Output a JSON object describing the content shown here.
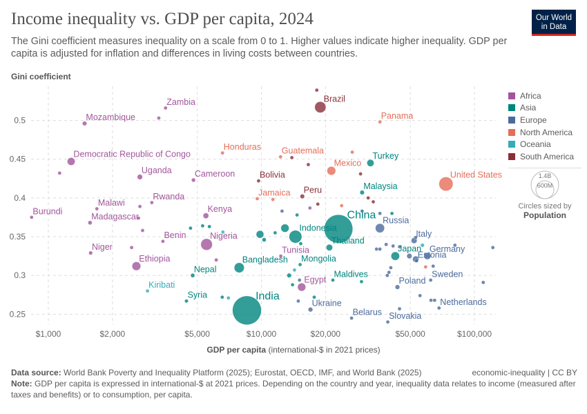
{
  "header": {
    "title": "Income inequality vs. GDP per capita, 2024",
    "subtitle": "The Gini coefficient measures inequality on a scale from 0 to 1. Higher values indicate higher inequality. GDP per capita is adjusted for inflation and differences in living costs between countries.",
    "logo_line1": "Our World",
    "logo_line2": "in Data"
  },
  "footer": {
    "source_label": "Data source:",
    "source": "World Bank Poverty and Inequality Platform (2025); Eurostat, OECD, IMF, and World Bank (2025)",
    "license": "economic-inequality | CC BY",
    "note_label": "Note:",
    "note": "GDP per capita is expressed in international-$ at 2021 prices. Depending on the country and year, inequality data relates to income (measured after taxes and benefits) or to consumption, per capita."
  },
  "size_legend": {
    "big": "1.4B",
    "small": "600M",
    "caption": "Circles sized by",
    "variable": "Population"
  },
  "chart_data": {
    "type": "scatter",
    "title": "Income inequality vs. GDP per capita, 2024",
    "xlabel_bold": "GDP per capita",
    "xlabel_rest": "(international-$ in 2021 prices)",
    "ylabel": "Gini coefficient",
    "xscale": "log",
    "xlim": [
      830,
      126000
    ],
    "ylim": [
      0.237,
      0.544
    ],
    "grid": true,
    "legend_position": "right",
    "xticks": [
      {
        "v": 1000,
        "label": "$1,000"
      },
      {
        "v": 2000,
        "label": "$2,000"
      },
      {
        "v": 5000,
        "label": "$5,000"
      },
      {
        "v": 10000,
        "label": "$10,000"
      },
      {
        "v": 20000,
        "label": "$20,000"
      },
      {
        "v": 50000,
        "label": "$50,000"
      },
      {
        "v": 100000,
        "label": "$100,000"
      }
    ],
    "yticks": [
      {
        "v": 0.25,
        "label": "0.25"
      },
      {
        "v": 0.3,
        "label": "0.3"
      },
      {
        "v": 0.35,
        "label": "0.35"
      },
      {
        "v": 0.4,
        "label": "0.4"
      },
      {
        "v": 0.45,
        "label": "0.45"
      },
      {
        "v": 0.5,
        "label": "0.5"
      }
    ],
    "regions": [
      {
        "name": "Africa",
        "color": "#a2559c"
      },
      {
        "name": "Asia",
        "color": "#00847e"
      },
      {
        "name": "Europe",
        "color": "#4c6a9c"
      },
      {
        "name": "North America",
        "color": "#e56e5a"
      },
      {
        "name": "Oceania",
        "color": "#38aaba"
      },
      {
        "name": "South America",
        "color": "#883039"
      }
    ],
    "points": [
      {
        "label": "Zambia",
        "region": "Africa",
        "x": 3550,
        "y": 0.516,
        "pop": 20
      },
      {
        "label": "",
        "region": "Africa",
        "x": 3300,
        "y": 0.503,
        "pop": 3
      },
      {
        "label": "Mozambique",
        "region": "Africa",
        "x": 1480,
        "y": 0.496,
        "pop": 34
      },
      {
        "label": "Democratic Republic of Congo",
        "region": "Africa",
        "x": 1280,
        "y": 0.447,
        "pop": 105
      },
      {
        "label": "",
        "region": "Africa",
        "x": 1130,
        "y": 0.432,
        "pop": 5
      },
      {
        "label": "Uganda",
        "region": "Africa",
        "x": 2690,
        "y": 0.427,
        "pop": 48
      },
      {
        "label": "Cameroon",
        "region": "Africa",
        "x": 4800,
        "y": 0.423,
        "pop": 28
      },
      {
        "label": "Rwanda",
        "region": "Africa",
        "x": 3060,
        "y": 0.394,
        "pop": 14
      },
      {
        "label": "",
        "region": "Africa",
        "x": 2690,
        "y": 0.389,
        "pop": 8
      },
      {
        "label": "Malawi",
        "region": "Africa",
        "x": 1690,
        "y": 0.386,
        "pop": 21
      },
      {
        "label": "Burundi",
        "region": "Africa",
        "x": 835,
        "y": 0.375,
        "pop": 13
      },
      {
        "label": "Madagascar",
        "region": "Africa",
        "x": 1570,
        "y": 0.368,
        "pop": 30
      },
      {
        "label": "",
        "region": "Africa",
        "x": 2650,
        "y": 0.374,
        "pop": 6
      },
      {
        "label": "Kenya",
        "region": "Africa",
        "x": 5490,
        "y": 0.377,
        "pop": 55
      },
      {
        "label": "",
        "region": "Africa",
        "x": 2770,
        "y": 0.358,
        "pop": 9
      },
      {
        "label": "Benin",
        "region": "Africa",
        "x": 3450,
        "y": 0.344,
        "pop": 14
      },
      {
        "label": "Nigeria",
        "region": "Africa",
        "x": 5530,
        "y": 0.34,
        "pop": 230
      },
      {
        "label": "Niger",
        "region": "Africa",
        "x": 1580,
        "y": 0.329,
        "pop": 26
      },
      {
        "label": "",
        "region": "Africa",
        "x": 2460,
        "y": 0.336,
        "pop": 6
      },
      {
        "label": "Ethiopia",
        "region": "Africa",
        "x": 2590,
        "y": 0.312,
        "pop": 130
      },
      {
        "label": "",
        "region": "Africa",
        "x": 6140,
        "y": 0.32,
        "pop": 7
      },
      {
        "label": "Tunisia",
        "region": "Africa",
        "x": 12330,
        "y": 0.325,
        "pop": 12
      },
      {
        "label": "",
        "region": "Africa",
        "x": 16900,
        "y": 0.387,
        "pop": 5
      },
      {
        "label": "Egypt",
        "region": "Africa",
        "x": 15450,
        "y": 0.285,
        "pop": 115
      },
      {
        "label": "Turkey",
        "region": "Asia",
        "x": 32500,
        "y": 0.445,
        "pop": 86
      },
      {
        "label": "Malaysia",
        "region": "Asia",
        "x": 29700,
        "y": 0.407,
        "pop": 35
      },
      {
        "label": "China",
        "region": "Asia",
        "x": 23000,
        "y": 0.36,
        "pop": 1410
      },
      {
        "label": "Indonesia",
        "region": "Asia",
        "x": 14450,
        "y": 0.35,
        "pop": 280
      },
      {
        "label": "",
        "region": "Asia",
        "x": 12900,
        "y": 0.361,
        "pop": 115
      },
      {
        "label": "",
        "region": "Asia",
        "x": 9850,
        "y": 0.353,
        "pop": 100
      },
      {
        "label": "",
        "region": "Asia",
        "x": 10300,
        "y": 0.346,
        "pop": 30
      },
      {
        "label": "",
        "region": "Asia",
        "x": 11600,
        "y": 0.355,
        "pop": 5
      },
      {
        "label": "Thailand",
        "region": "Asia",
        "x": 20850,
        "y": 0.336,
        "pop": 72
      },
      {
        "label": "Bangladesh",
        "region": "Asia",
        "x": 7870,
        "y": 0.31,
        "pop": 173
      },
      {
        "label": "Mongolia",
        "region": "Asia",
        "x": 15200,
        "y": 0.314,
        "pop": 4
      },
      {
        "label": "Nepal",
        "region": "Asia",
        "x": 4760,
        "y": 0.3,
        "pop": 30
      },
      {
        "label": "Maldives",
        "region": "Asia",
        "x": 21650,
        "y": 0.294,
        "pop": 1
      },
      {
        "label": "",
        "region": "Asia",
        "x": 29500,
        "y": 0.292,
        "pop": 5
      },
      {
        "label": "",
        "region": "Asia",
        "x": 13500,
        "y": 0.3,
        "pop": 35
      },
      {
        "label": "",
        "region": "Asia",
        "x": 14000,
        "y": 0.288,
        "pop": 5
      },
      {
        "label": "",
        "region": "Asia",
        "x": 15300,
        "y": 0.341,
        "pop": 5
      },
      {
        "label": "",
        "region": "Asia",
        "x": 5700,
        "y": 0.363,
        "pop": 5
      },
      {
        "label": "",
        "region": "Asia",
        "x": 4650,
        "y": 0.361,
        "pop": 5
      },
      {
        "label": "",
        "region": "Asia",
        "x": 5300,
        "y": 0.364,
        "pop": 5
      },
      {
        "label": "",
        "region": "Asia",
        "x": 14700,
        "y": 0.378,
        "pop": 5
      },
      {
        "label": "",
        "region": "Asia",
        "x": 41000,
        "y": 0.38,
        "pop": 5
      },
      {
        "label": "",
        "region": "Asia",
        "x": 6550,
        "y": 0.272,
        "pop": 5
      },
      {
        "label": "",
        "region": "Asia",
        "x": 17700,
        "y": 0.272,
        "pop": 5
      },
      {
        "label": "Japan",
        "region": "Asia",
        "x": 42500,
        "y": 0.325,
        "pop": 124
      },
      {
        "label": "India",
        "region": "Asia",
        "x": 8550,
        "y": 0.255,
        "pop": 1440
      },
      {
        "label": "Syria",
        "region": "Asia",
        "x": 4450,
        "y": 0.267,
        "pop": 23
      },
      {
        "label": "Kiribati",
        "region": "Oceania",
        "x": 2920,
        "y": 0.28,
        "pop": 1
      },
      {
        "label": "",
        "region": "Oceania",
        "x": 7000,
        "y": 0.271,
        "pop": 5
      },
      {
        "label": "",
        "region": "Oceania",
        "x": 6600,
        "y": 0.356,
        "pop": 5
      },
      {
        "label": "",
        "region": "Oceania",
        "x": 14300,
        "y": 0.307,
        "pop": 5
      },
      {
        "label": "",
        "region": "Oceania",
        "x": 57000,
        "y": 0.339,
        "pop": 26
      },
      {
        "label": "Russia",
        "region": "Europe",
        "x": 36000,
        "y": 0.361,
        "pop": 144
      },
      {
        "label": "Italy",
        "region": "Europe",
        "x": 52100,
        "y": 0.345,
        "pop": 59
      },
      {
        "label": "Germany",
        "region": "Europe",
        "x": 60100,
        "y": 0.325,
        "pop": 84
      },
      {
        "label": "Estonia",
        "region": "Europe",
        "x": 53500,
        "y": 0.319,
        "pop": 1
      },
      {
        "label": "",
        "region": "Europe",
        "x": 49500,
        "y": 0.325,
        "pop": 47
      },
      {
        "label": "",
        "region": "Europe",
        "x": 53000,
        "y": 0.321,
        "pop": 68
      },
      {
        "label": "Poland",
        "region": "Europe",
        "x": 43500,
        "y": 0.285,
        "pop": 37
      },
      {
        "label": "Sweden",
        "region": "Europe",
        "x": 62300,
        "y": 0.294,
        "pop": 10
      },
      {
        "label": "Netherlands",
        "region": "Europe",
        "x": 68200,
        "y": 0.258,
        "pop": 18
      },
      {
        "label": "Ukraine",
        "region": "Europe",
        "x": 17000,
        "y": 0.256,
        "pop": 37
      },
      {
        "label": "Belarus",
        "region": "Europe",
        "x": 26500,
        "y": 0.245,
        "pop": 9
      },
      {
        "label": "Slovakia",
        "region": "Europe",
        "x": 39200,
        "y": 0.24,
        "pop": 5
      },
      {
        "label": "",
        "region": "Europe",
        "x": 36000,
        "y": 0.38,
        "pop": 3
      },
      {
        "label": "",
        "region": "Europe",
        "x": 36000,
        "y": 0.334,
        "pop": 5
      },
      {
        "label": "",
        "region": "Europe",
        "x": 38500,
        "y": 0.34,
        "pop": 5
      },
      {
        "label": "",
        "region": "Europe",
        "x": 41500,
        "y": 0.338,
        "pop": 5
      },
      {
        "label": "",
        "region": "Europe",
        "x": 44500,
        "y": 0.337,
        "pop": 5
      },
      {
        "label": "",
        "region": "Europe",
        "x": 34700,
        "y": 0.334,
        "pop": 5
      },
      {
        "label": "",
        "region": "Europe",
        "x": 53000,
        "y": 0.349,
        "pop": 5
      },
      {
        "label": "",
        "region": "Europe",
        "x": 81000,
        "y": 0.339,
        "pop": 5
      },
      {
        "label": "",
        "region": "Europe",
        "x": 122000,
        "y": 0.336,
        "pop": 5
      },
      {
        "label": "",
        "region": "Europe",
        "x": 64000,
        "y": 0.312,
        "pop": 5
      },
      {
        "label": "",
        "region": "Europe",
        "x": 40500,
        "y": 0.31,
        "pop": 5
      },
      {
        "label": "",
        "region": "Europe",
        "x": 39700,
        "y": 0.304,
        "pop": 5
      },
      {
        "label": "",
        "region": "Europe",
        "x": 39000,
        "y": 0.3,
        "pop": 5
      },
      {
        "label": "",
        "region": "Europe",
        "x": 110000,
        "y": 0.291,
        "pop": 5
      },
      {
        "label": "",
        "region": "Europe",
        "x": 55500,
        "y": 0.274,
        "pop": 5
      },
      {
        "label": "",
        "region": "Europe",
        "x": 62500,
        "y": 0.268,
        "pop": 5
      },
      {
        "label": "",
        "region": "Europe",
        "x": 65000,
        "y": 0.268,
        "pop": 5
      },
      {
        "label": "",
        "region": "Europe",
        "x": 44500,
        "y": 0.257,
        "pop": 5
      },
      {
        "label": "",
        "region": "Europe",
        "x": 14900,
        "y": 0.267,
        "pop": 5
      },
      {
        "label": "",
        "region": "Europe",
        "x": 15100,
        "y": 0.294,
        "pop": 5
      },
      {
        "label": "",
        "region": "Europe",
        "x": 12500,
        "y": 0.383,
        "pop": 5
      },
      {
        "label": "",
        "region": "Europe",
        "x": 29700,
        "y": 0.383,
        "pop": 5
      },
      {
        "label": "United States",
        "region": "North America",
        "x": 73500,
        "y": 0.418,
        "pop": 340
      },
      {
        "label": "Mexico",
        "region": "North America",
        "x": 21300,
        "y": 0.435,
        "pop": 130
      },
      {
        "label": "Panama",
        "region": "North America",
        "x": 36000,
        "y": 0.498,
        "pop": 4
      },
      {
        "label": "Honduras",
        "region": "North America",
        "x": 6570,
        "y": 0.458,
        "pop": 10
      },
      {
        "label": "Guatemala",
        "region": "North America",
        "x": 12300,
        "y": 0.453,
        "pop": 18
      },
      {
        "label": "Jamaica",
        "region": "North America",
        "x": 9560,
        "y": 0.399,
        "pop": 3
      },
      {
        "label": "",
        "region": "North America",
        "x": 11330,
        "y": 0.398,
        "pop": 11
      },
      {
        "label": "",
        "region": "North America",
        "x": 26700,
        "y": 0.459,
        "pop": 5
      },
      {
        "label": "",
        "region": "North America",
        "x": 23800,
        "y": 0.39,
        "pop": 5
      },
      {
        "label": "",
        "region": "North America",
        "x": 59000,
        "y": 0.311,
        "pop": 5
      },
      {
        "label": "Brazil",
        "region": "South America",
        "x": 18900,
        "y": 0.517,
        "pop": 216
      },
      {
        "label": "",
        "region": "South America",
        "x": 18200,
        "y": 0.539,
        "pop": 20
      },
      {
        "label": "Bolivia",
        "region": "South America",
        "x": 9700,
        "y": 0.422,
        "pop": 12
      },
      {
        "label": "Peru",
        "region": "South America",
        "x": 15560,
        "y": 0.402,
        "pop": 34
      },
      {
        "label": "",
        "region": "South America",
        "x": 13900,
        "y": 0.452,
        "pop": 5
      },
      {
        "label": "",
        "region": "South America",
        "x": 16600,
        "y": 0.443,
        "pop": 5
      },
      {
        "label": "",
        "region": "South America",
        "x": 29200,
        "y": 0.431,
        "pop": 5
      },
      {
        "label": "",
        "region": "South America",
        "x": 31700,
        "y": 0.4,
        "pop": 5
      },
      {
        "label": "",
        "region": "South America",
        "x": 18400,
        "y": 0.392,
        "pop": 5
      },
      {
        "label": "",
        "region": "South America",
        "x": 33500,
        "y": 0.395,
        "pop": 5
      }
    ]
  }
}
